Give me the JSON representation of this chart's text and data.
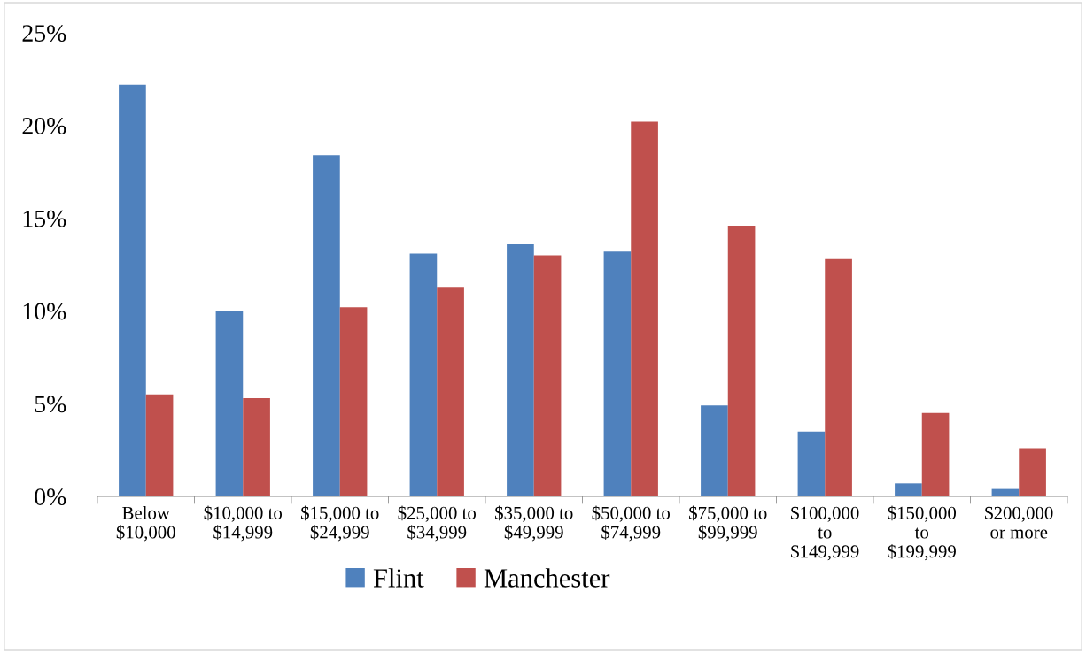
{
  "chart_data": {
    "type": "bar",
    "categories": [
      "Below\n$10,000",
      "$10,000 to\n$14,999",
      "$15,000 to\n$24,999",
      "$25,000 to\n$34,999",
      "$35,000 to\n$49,999",
      "$50,000 to\n$74,999",
      "$75,000 to\n$99,999",
      "$100,000\nto\n$149,999",
      "$150,000\nto\n$199,999",
      "$200,000\nor more"
    ],
    "series": [
      {
        "name": "Flint",
        "color": "#4f81bd",
        "values": [
          22.2,
          10.0,
          18.4,
          13.1,
          13.6,
          13.2,
          4.9,
          3.5,
          0.7,
          0.4
        ]
      },
      {
        "name": "Manchester",
        "color": "#c0504d",
        "values": [
          5.5,
          5.3,
          10.2,
          11.3,
          13.0,
          20.2,
          14.6,
          12.8,
          4.5,
          2.6
        ]
      }
    ],
    "ylim": [
      0,
      25
    ],
    "yticks": [
      {
        "value": 0,
        "label": "0%"
      },
      {
        "value": 5,
        "label": "5%"
      },
      {
        "value": 10,
        "label": "10%"
      },
      {
        "value": 15,
        "label": "15%"
      },
      {
        "value": 20,
        "label": "20%"
      },
      {
        "value": 25,
        "label": "25%"
      }
    ],
    "grid": false,
    "legend": "bottom"
  }
}
